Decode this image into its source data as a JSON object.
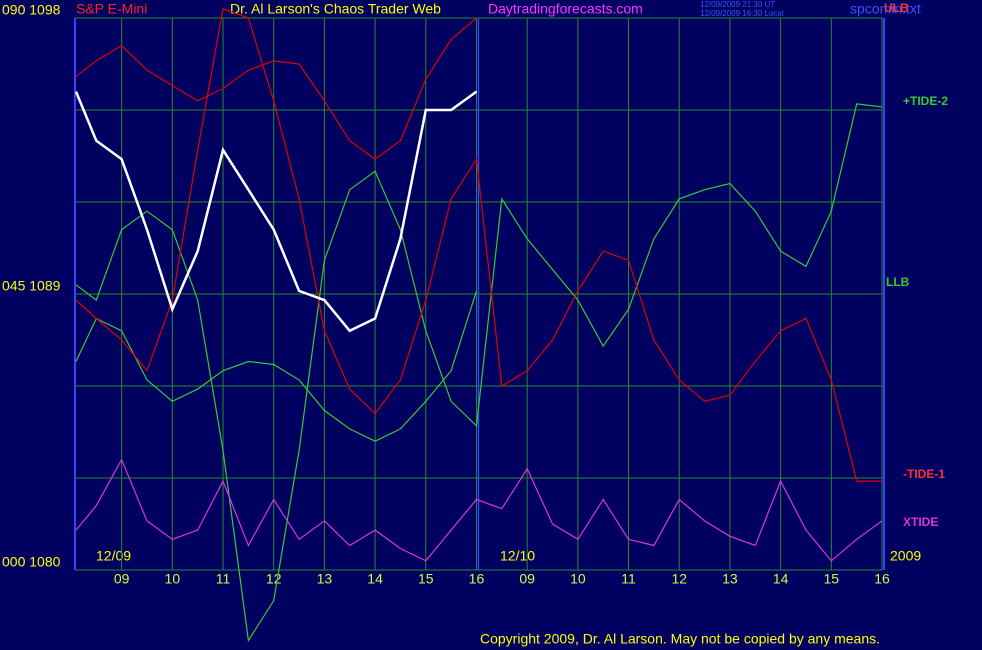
{
  "chart_data": {
    "type": "line",
    "title": "S&P E-Mini",
    "subtitle": "Dr. Al Larson's Chaos Trader Web",
    "site": "Daytradingforecasts.com",
    "timestamps": [
      "12/09/2009 21:30 UT",
      "12/09/2009 16:30 Local"
    ],
    "file": "spcomin.txt",
    "dates": [
      "12/09",
      "12/10",
      "2009"
    ],
    "copyright": "Copyright 2009, Dr. Al Larson. May not be copied by any means.",
    "xlim": [
      0.08,
      16
    ],
    "xticks": [
      {
        "value": 1,
        "label": "09"
      },
      {
        "value": 2,
        "label": "10"
      },
      {
        "value": 3,
        "label": "11"
      },
      {
        "value": 4,
        "label": "12"
      },
      {
        "value": 5,
        "label": "13"
      },
      {
        "value": 6,
        "label": "14"
      },
      {
        "value": 7,
        "label": "15"
      },
      {
        "value": 8,
        "label": "16"
      },
      {
        "value": 9,
        "label": "09"
      },
      {
        "value": 10,
        "label": "10"
      },
      {
        "value": 11,
        "label": "11"
      },
      {
        "value": 12,
        "label": "12"
      },
      {
        "value": 13,
        "label": "13"
      },
      {
        "value": 14,
        "label": "14"
      },
      {
        "value": 15,
        "label": "15"
      },
      {
        "value": 16,
        "label": "16"
      }
    ],
    "ylim": [
      1080,
      1098
    ],
    "yticks": [
      {
        "value": 1098,
        "label": "090 1098"
      },
      {
        "value": 1095,
        "label": null
      },
      {
        "value": 1092,
        "label": null
      },
      {
        "value": 1089,
        "label": "045 1089"
      },
      {
        "value": 1086,
        "label": null
      },
      {
        "value": 1083,
        "label": null
      },
      {
        "value": 1080,
        "label": "000 1080"
      }
    ],
    "grid": true,
    "x": [
      0.1,
      0.5,
      1,
      1.5,
      2,
      2.5,
      3,
      3.5,
      4,
      4.5,
      5,
      5.5,
      6,
      6.5,
      7,
      7.5,
      8,
      8.5,
      9,
      9.5,
      10,
      10.5,
      11,
      11.5,
      12,
      12.5,
      13,
      13.5,
      14,
      14.5,
      15,
      15.5,
      16
    ],
    "series": [
      {
        "name": "ULB",
        "color": "#e00000",
        "values": [
          1096.1,
          1096.6,
          1097.1,
          1096.3,
          1095.8,
          1095.3,
          1095.7,
          1096.3,
          1096.6,
          1096.5,
          1095.3,
          1094.0,
          1093.4,
          1094.0,
          1096.0,
          1097.3,
          1098.0,
          null,
          null,
          null,
          null,
          null,
          null,
          null,
          null,
          null,
          null,
          null,
          null,
          null,
          null,
          null,
          null
        ]
      },
      {
        "name": "LLB",
        "color": "#33cc33",
        "values": [
          1086.8,
          1088.2,
          1087.8,
          1086.2,
          1085.5,
          1085.9,
          1086.5,
          1086.8,
          1086.7,
          1086.2,
          1085.2,
          1084.6,
          1084.2,
          1084.6,
          1085.5,
          1086.5,
          1089.1,
          null,
          null,
          null,
          null,
          null,
          null,
          null,
          null,
          null,
          null,
          null,
          null,
          null,
          null,
          null,
          null
        ]
      },
      {
        "name": "+TIDE-2",
        "color": "#33cc33",
        "values": [
          1089.3,
          1088.8,
          1091.1,
          1091.7,
          1091.1,
          1088.8,
          1083.9,
          1077.7,
          1079.0,
          1083.9,
          1090.1,
          1092.4,
          1093.0,
          1091.1,
          1087.8,
          1085.5,
          1084.7,
          1092.1,
          1090.8,
          1089.8,
          1088.8,
          1087.3,
          1088.5,
          1090.8,
          1092.1,
          1092.4,
          1092.6,
          1091.7,
          1090.4,
          1089.9,
          1091.7,
          1095.2,
          1095.1
        ]
      },
      {
        "name": "-TIDE-1",
        "color": "#e00000",
        "values": [
          1088.8,
          1088.2,
          1087.5,
          1086.5,
          1088.8,
          1093.7,
          1098.3,
          1098.0,
          1095.3,
          1092.1,
          1087.8,
          1085.9,
          1085.1,
          1086.2,
          1088.8,
          1092.1,
          1093.4,
          1086.0,
          1086.5,
          1087.5,
          1089.1,
          1090.4,
          1090.1,
          1087.5,
          1086.2,
          1085.5,
          1085.7,
          1086.8,
          1087.8,
          1088.2,
          1086.2,
          1082.9,
          1082.9
        ]
      },
      {
        "name": "XTIDE",
        "color": "#dd33dd",
        "values": [
          1081.3,
          1082.1,
          1083.6,
          1081.6,
          1081.0,
          1081.3,
          1082.9,
          1080.8,
          1082.3,
          1081.0,
          1081.6,
          1080.8,
          1081.3,
          1080.7,
          1080.3,
          1081.3,
          1082.3,
          1082.0,
          1083.3,
          1081.5,
          1081.0,
          1082.3,
          1081.0,
          1080.8,
          1082.3,
          1081.6,
          1081.1,
          1080.8,
          1082.9,
          1081.3,
          1080.3,
          1081.0,
          1081.6
        ]
      },
      {
        "color": "#ffffff",
        "values": [
          1095.6,
          1094.0,
          1093.4,
          1091.1,
          1088.5,
          1090.4,
          1093.7,
          1092.4,
          1091.1,
          1089.1,
          1088.8,
          1087.8,
          1088.2,
          1090.8,
          1095.0,
          1095.0,
          1095.6,
          null,
          null,
          null,
          null,
          null,
          null,
          null,
          null,
          null,
          null,
          null,
          null,
          null,
          null,
          null,
          null
        ]
      }
    ]
  }
}
